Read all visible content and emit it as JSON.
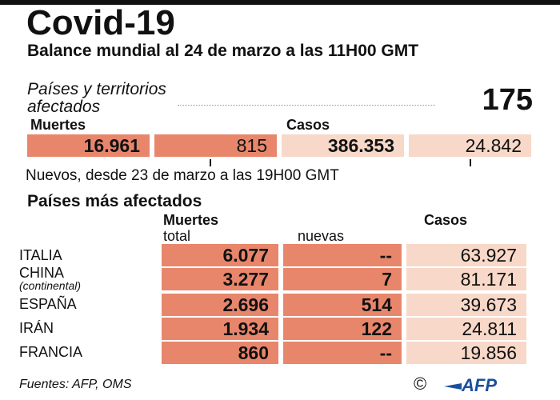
{
  "title": "Covid-19",
  "subtitle": "Balance mundial al 24 de marzo a las 11H00 GMT",
  "countries_label_line1": "Países y territorios",
  "countries_label_line2": "afectados",
  "countries_count": "175",
  "headers": {
    "deaths": "Muertes",
    "cases": "Casos"
  },
  "totals": {
    "deaths_total": "16.961",
    "deaths_new": "815",
    "cases_total": "386.353",
    "cases_new": "24.842"
  },
  "note": "Nuevos, desde 23 de marzo a las 19H00 GMT",
  "section_title": "Países más afectados",
  "table_headers": {
    "deaths": "Muertes",
    "total": "total",
    "new": "nuevas",
    "cases": "Casos"
  },
  "rows": [
    {
      "country": "ITALIA",
      "sub": "",
      "deaths_total": "6.077",
      "deaths_new": "--",
      "cases": "63.927"
    },
    {
      "country": "CHINA",
      "sub": "(continental)",
      "deaths_total": "3.277",
      "deaths_new": "7",
      "cases": "81.171"
    },
    {
      "country": "ESPAÑA",
      "sub": "",
      "deaths_total": "2.696",
      "deaths_new": "514",
      "cases": "39.673"
    },
    {
      "country": "IRÁN",
      "sub": "",
      "deaths_total": "1.934",
      "deaths_new": "122",
      "cases": "24.811"
    },
    {
      "country": "FRANCIA",
      "sub": "",
      "deaths_total": "860",
      "deaths_new": "--",
      "cases": "19.856"
    }
  ],
  "footer": "Fuentes: AFP, OMS",
  "copyright": "©",
  "logo_text": "AFP",
  "colors": {
    "deaths_box": "#e8866c",
    "cases_box": "#f8d8c8",
    "logo_blue": "#1a4f9c"
  }
}
